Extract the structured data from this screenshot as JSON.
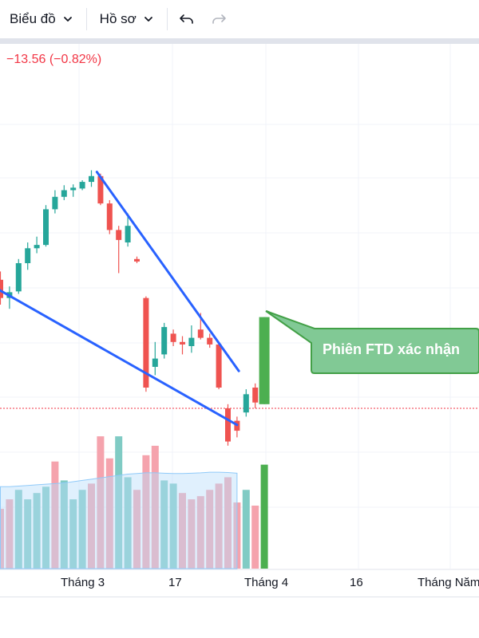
{
  "toolbar": {
    "chart_label": "Biểu đồ",
    "profile_label": "Hồ sơ"
  },
  "price_change": "−13.56 (−0.82%)",
  "annotation": "Phiên FTD xác nhận",
  "colors": {
    "up": "#26a69a",
    "down": "#ef5350",
    "ftd": "#4caf50",
    "trendline": "#2962ff",
    "price_line": "#f23645",
    "callout_fill": "#81c995",
    "callout_border": "#43a047"
  },
  "chart_data": [
    {
      "type": "candlestick",
      "title": "",
      "x_axis_labels": [
        "Tháng 3",
        "17",
        "Tháng 4",
        "16",
        "Tháng Năm"
      ],
      "candles": [
        {
          "o": 1500,
          "h": 1510,
          "l": 1470,
          "c": 1478
        },
        {
          "o": 1478,
          "h": 1492,
          "l": 1465,
          "c": 1485
        },
        {
          "o": 1486,
          "h": 1525,
          "l": 1483,
          "c": 1520
        },
        {
          "o": 1520,
          "h": 1545,
          "l": 1512,
          "c": 1538
        },
        {
          "o": 1538,
          "h": 1552,
          "l": 1532,
          "c": 1542
        },
        {
          "o": 1542,
          "h": 1590,
          "l": 1540,
          "c": 1585
        },
        {
          "o": 1585,
          "h": 1608,
          "l": 1580,
          "c": 1600
        },
        {
          "o": 1600,
          "h": 1614,
          "l": 1596,
          "c": 1608
        },
        {
          "o": 1608,
          "h": 1615,
          "l": 1600,
          "c": 1611
        },
        {
          "o": 1610,
          "h": 1620,
          "l": 1608,
          "c": 1618
        },
        {
          "o": 1618,
          "h": 1632,
          "l": 1612,
          "c": 1625
        },
        {
          "o": 1625,
          "h": 1628,
          "l": 1590,
          "c": 1592
        },
        {
          "o": 1592,
          "h": 1596,
          "l": 1555,
          "c": 1560
        },
        {
          "o": 1560,
          "h": 1565,
          "l": 1508,
          "c": 1548
        },
        {
          "o": 1545,
          "h": 1580,
          "l": 1540,
          "c": 1565
        },
        {
          "o": 1525,
          "h": 1528,
          "l": 1520,
          "c": 1522
        },
        {
          "o": 1478,
          "h": 1480,
          "l": 1365,
          "c": 1370
        },
        {
          "o": 1395,
          "h": 1425,
          "l": 1385,
          "c": 1405
        },
        {
          "o": 1410,
          "h": 1448,
          "l": 1405,
          "c": 1443
        },
        {
          "o": 1435,
          "h": 1440,
          "l": 1420,
          "c": 1425
        },
        {
          "o": 1425,
          "h": 1432,
          "l": 1410,
          "c": 1422
        },
        {
          "o": 1420,
          "h": 1445,
          "l": 1412,
          "c": 1430
        },
        {
          "o": 1440,
          "h": 1460,
          "l": 1428,
          "c": 1430
        },
        {
          "o": 1430,
          "h": 1435,
          "l": 1418,
          "c": 1422
        },
        {
          "o": 1422,
          "h": 1425,
          "l": 1368,
          "c": 1370
        },
        {
          "o": 1345,
          "h": 1350,
          "l": 1300,
          "c": 1305
        },
        {
          "o": 1330,
          "h": 1335,
          "l": 1310,
          "c": 1318
        },
        {
          "o": 1340,
          "h": 1368,
          "l": 1335,
          "c": 1362
        },
        {
          "o": 1370,
          "h": 1375,
          "l": 1345,
          "c": 1352
        },
        {
          "o": 1350,
          "h": 1455,
          "l": 1350,
          "c": 1455
        }
      ],
      "volume": [
        {
          "v": 1.9,
          "d": "down"
        },
        {
          "v": 2.2,
          "d": "down"
        },
        {
          "v": 2.5,
          "d": "up"
        },
        {
          "v": 2.2,
          "d": "up"
        },
        {
          "v": 2.4,
          "d": "up"
        },
        {
          "v": 2.6,
          "d": "up"
        },
        {
          "v": 3.4,
          "d": "down"
        },
        {
          "v": 2.8,
          "d": "up"
        },
        {
          "v": 2.2,
          "d": "up"
        },
        {
          "v": 2.5,
          "d": "up"
        },
        {
          "v": 2.7,
          "d": "down"
        },
        {
          "v": 4.2,
          "d": "down"
        },
        {
          "v": 3.5,
          "d": "down"
        },
        {
          "v": 4.2,
          "d": "up"
        },
        {
          "v": 2.9,
          "d": "up"
        },
        {
          "v": 2.5,
          "d": "down"
        },
        {
          "v": 3.6,
          "d": "down"
        },
        {
          "v": 3.9,
          "d": "down"
        },
        {
          "v": 2.8,
          "d": "up"
        },
        {
          "v": 2.7,
          "d": "up"
        },
        {
          "v": 2.4,
          "d": "down"
        },
        {
          "v": 2.2,
          "d": "down"
        },
        {
          "v": 2.3,
          "d": "down"
        },
        {
          "v": 2.5,
          "d": "down"
        },
        {
          "v": 2.7,
          "d": "down"
        },
        {
          "v": 2.9,
          "d": "down"
        },
        {
          "v": 2.1,
          "d": "down"
        },
        {
          "v": 2.5,
          "d": "up"
        },
        {
          "v": 2.0,
          "d": "down"
        },
        {
          "v": 3.3,
          "d": "up"
        }
      ],
      "volume_ma": [
        2.6,
        2.6,
        2.62,
        2.64,
        2.66,
        2.68,
        2.7,
        2.72,
        2.76,
        2.8,
        2.84,
        2.88,
        2.92,
        2.96,
        3.0,
        3.02,
        3.04,
        3.04,
        3.03,
        3.02,
        3.02,
        3.03,
        3.04,
        3.06,
        3.06,
        3.05,
        3.03
      ],
      "trend_upper": [
        [
          10.6,
          1630
        ],
        [
          26.2,
          1390
        ]
      ],
      "trend_lower": [
        [
          -0.5,
          1490
        ],
        [
          26.0,
          1325
        ]
      ],
      "last_price_line": 1345,
      "grid": true
    }
  ]
}
